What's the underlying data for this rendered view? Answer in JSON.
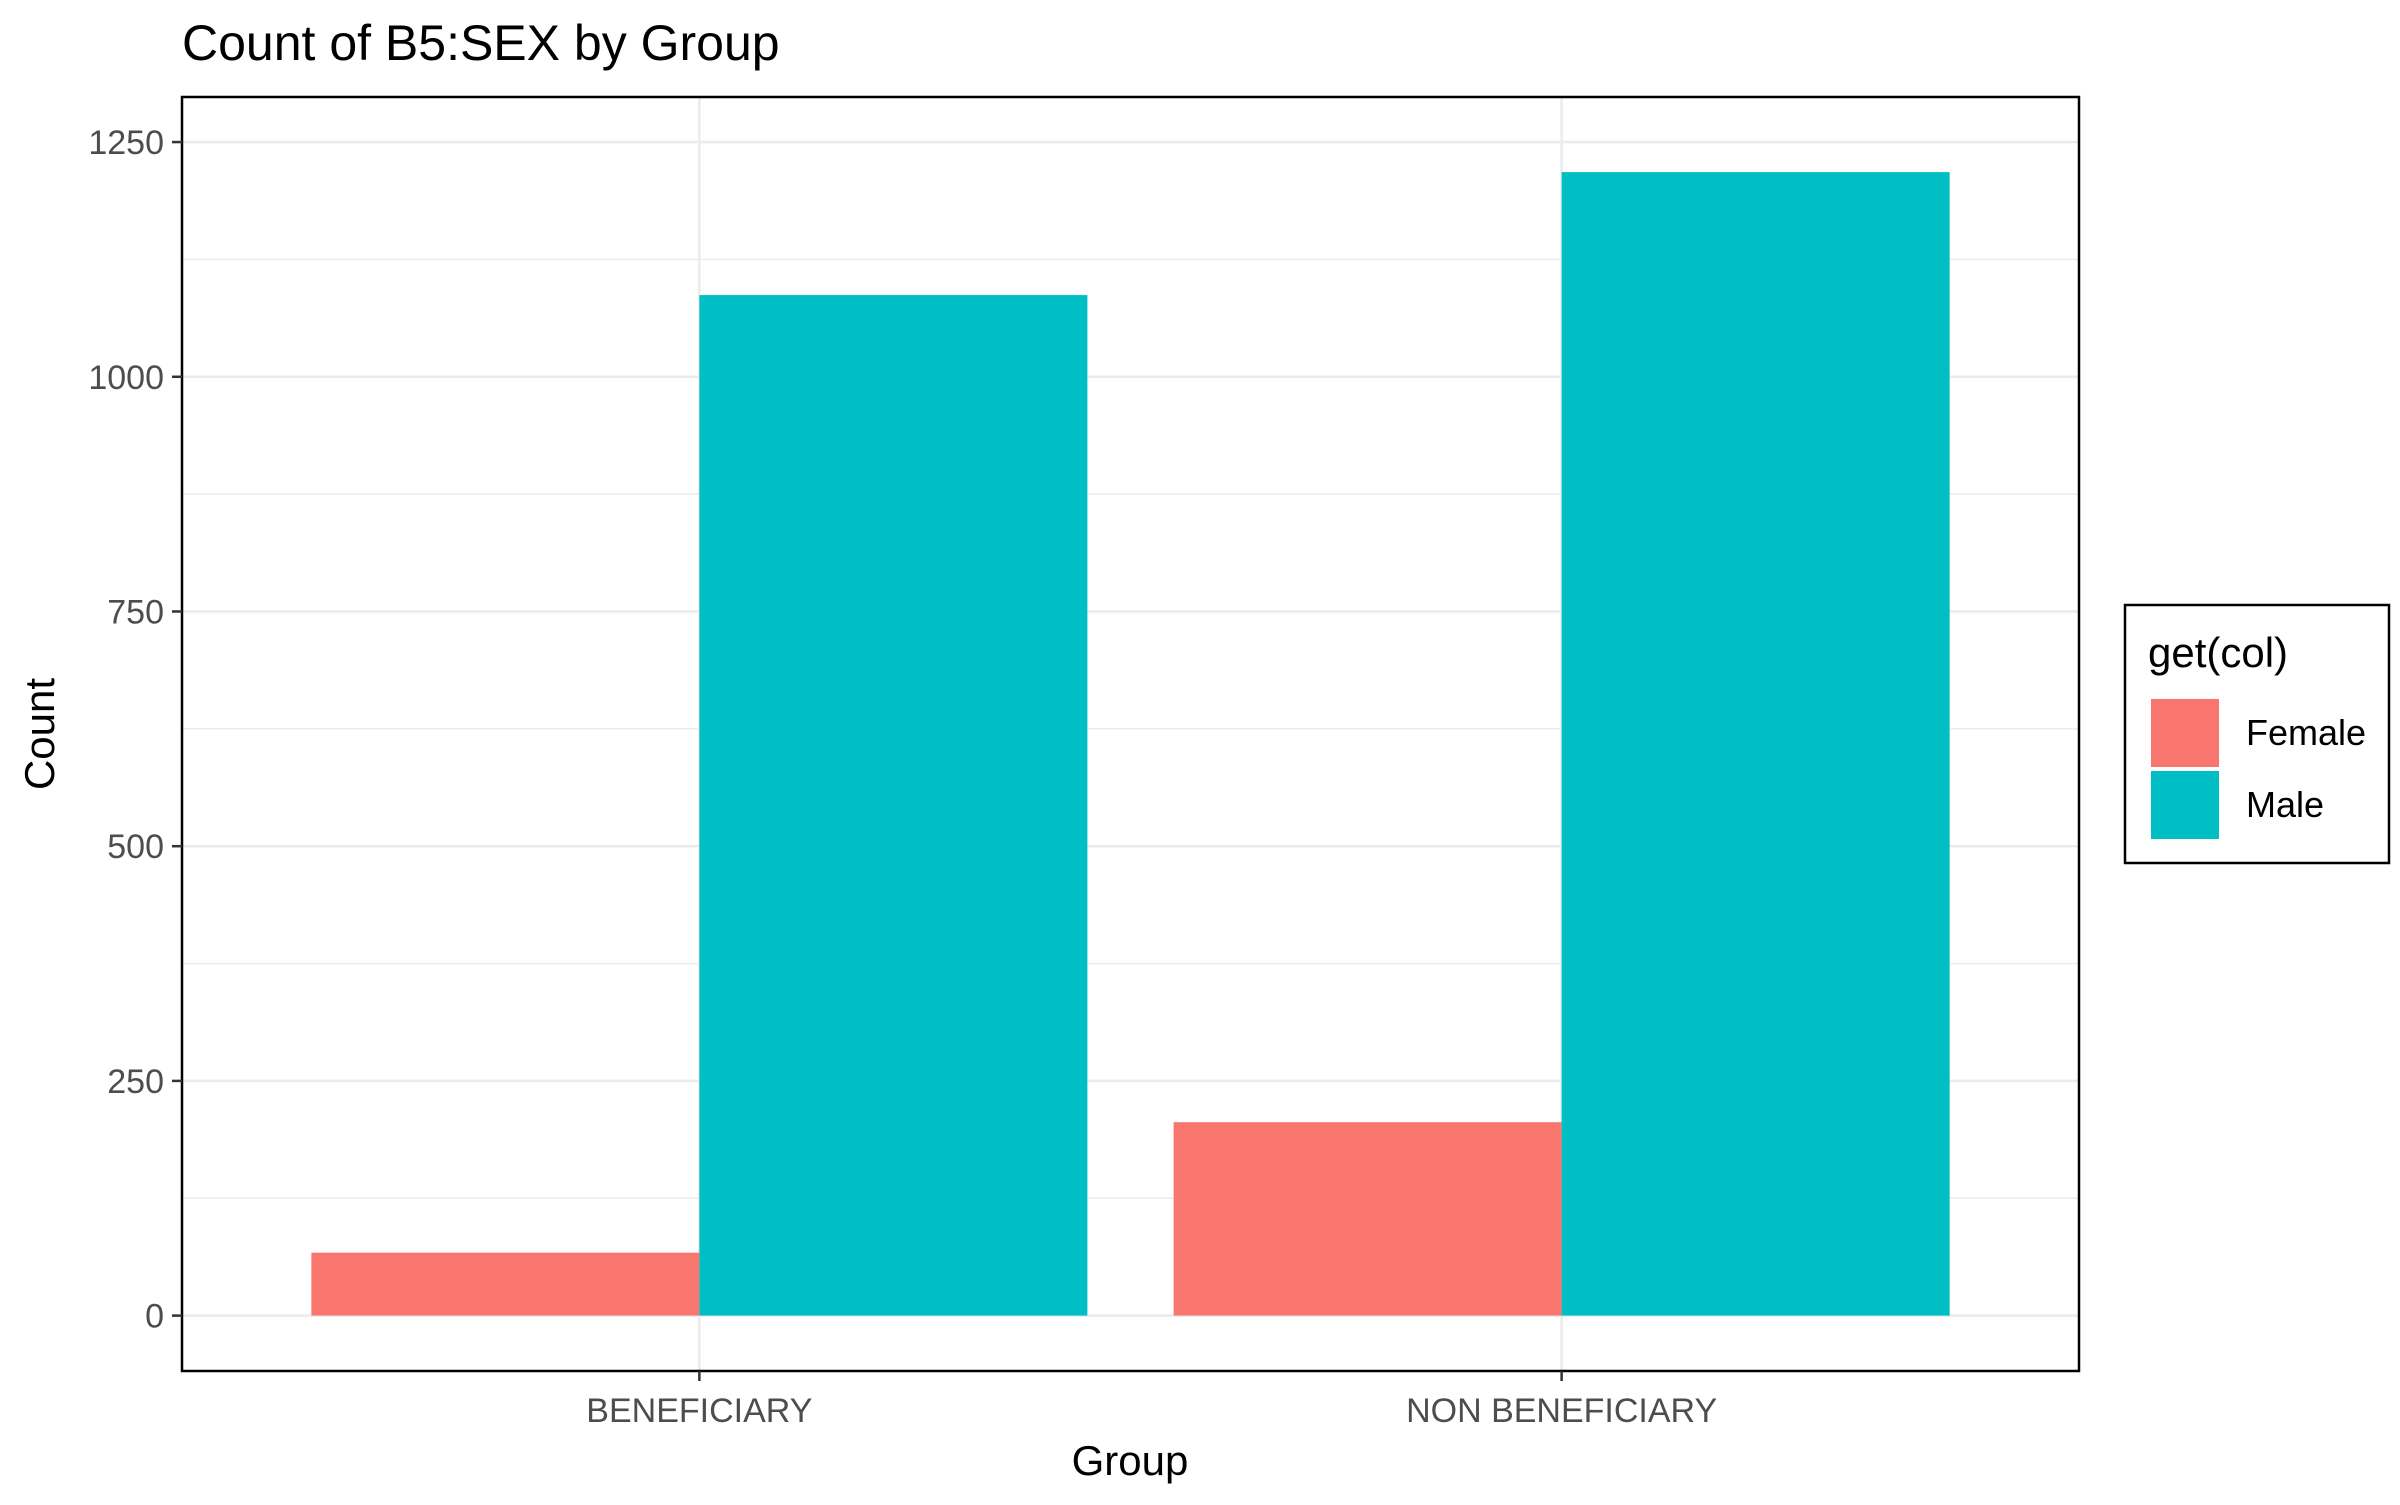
{
  "chart_data": {
    "type": "bar",
    "title": "Count of B5:SEX by Group",
    "xlabel": "Group",
    "ylabel": "Count",
    "categories": [
      "BENEFICIARY",
      "NON BENEFICIARY"
    ],
    "series": [
      {
        "name": "Female",
        "values": [
          67,
          206
        ],
        "color": "#F8766D"
      },
      {
        "name": "Male",
        "values": [
          1087,
          1218
        ],
        "color": "#00BFC4"
      }
    ],
    "ylim": [
      -59,
      1298
    ],
    "yticks": [
      0,
      250,
      500,
      750,
      1000,
      1250
    ],
    "ytick_labels": [
      "0",
      "250",
      "500",
      "750",
      "1000",
      "1250"
    ],
    "grid": true,
    "legend": {
      "title": "get(col)",
      "placement": "right"
    }
  }
}
